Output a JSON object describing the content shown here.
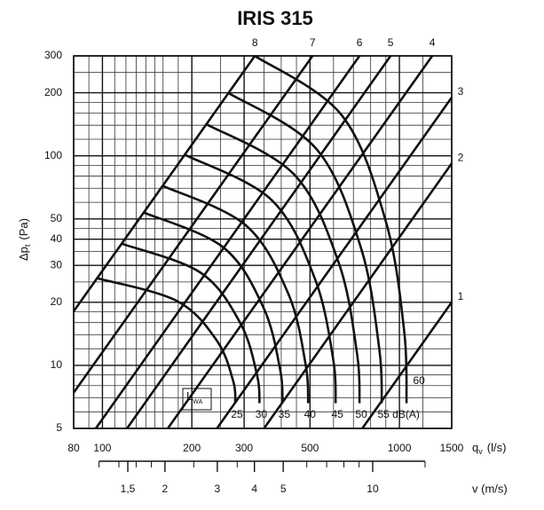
{
  "chart_data": {
    "type": "line",
    "title": "IRIS 315",
    "y_label": [
      "Δp",
      "t",
      "(Pa)"
    ],
    "x_label": [
      "q",
      "v",
      "(l/s)"
    ],
    "xscale": "log",
    "yscale": "log",
    "xlim": [
      80,
      1500
    ],
    "ylim": [
      5,
      300
    ],
    "xticks": [
      80,
      100,
      200,
      300,
      500,
      1000,
      1500
    ],
    "yticks": [
      5,
      10,
      20,
      30,
      40,
      50,
      100,
      200,
      300
    ],
    "xgrid": [
      90,
      110,
      120,
      130,
      140,
      150,
      160,
      180,
      250,
      350,
      400,
      450,
      600,
      700,
      800,
      900,
      1200
    ],
    "ygrid": [
      6,
      7,
      8,
      9,
      12,
      14,
      16,
      18,
      25,
      35,
      45,
      60,
      70,
      80,
      90,
      120,
      140,
      160,
      180,
      250
    ],
    "grid": true,
    "color": "#111111",
    "series": [
      {
        "name": "1",
        "x": [
          750,
          1500
        ],
        "values": [
          5,
          20
        ]
      },
      {
        "name": "2",
        "x": [
          350,
          1500
        ],
        "values": [
          5,
          92
        ]
      },
      {
        "name": "3",
        "x": [
          243,
          1500
        ],
        "values": [
          5,
          190
        ]
      },
      {
        "name": "4",
        "x": [
          166,
          1290
        ],
        "values": [
          5,
          300
        ]
      },
      {
        "name": "5",
        "x": [
          121,
          934
        ],
        "values": [
          5,
          300
        ]
      },
      {
        "name": "6",
        "x": [
          95,
          734
        ],
        "values": [
          5,
          300
        ]
      },
      {
        "name": "7",
        "x": [
          80,
          510
        ],
        "values": [
          7.4,
          300
        ]
      },
      {
        "name": "8",
        "x": [
          80,
          326
        ],
        "values": [
          18.1,
          300
        ]
      }
    ],
    "sound_curves": [
      {
        "name": "25",
        "x": [
          96.6,
          178,
          243,
          276,
          280
        ],
        "values": [
          26.0,
          20.3,
          13.1,
          8.35,
          6.6
        ]
      },
      {
        "name": "30",
        "x": [
          116,
          214,
          292,
          332,
          338
        ],
        "values": [
          38.1,
          27.7,
          15.8,
          8.92,
          6.6
        ]
      },
      {
        "name": "35",
        "x": [
          138,
          255,
          349,
          397,
          404
        ],
        "values": [
          53.6,
          36.6,
          18.8,
          9.47,
          6.6
        ]
      },
      {
        "name": "40",
        "x": [
          160,
          304,
          424,
          484,
          493
        ],
        "values": [
          71.8,
          46.6,
          21.7,
          9.96,
          6.6
        ]
      },
      {
        "name": "45",
        "x": [
          190,
          371,
          520,
          599,
          610
        ],
        "values": [
          101,
          61.6,
          25.8,
          10.6,
          6.6
        ]
      },
      {
        "name": "50",
        "x": [
          223,
          442,
          626,
          721,
          734
        ],
        "values": [
          142,
          81.5,
          30.6,
          11.2,
          6.6
        ]
      },
      {
        "name": "55",
        "x": [
          265,
          525,
          743,
          856,
          872
        ],
        "values": [
          200,
          108,
          36.2,
          11.9,
          6.6
        ]
      },
      {
        "name": "60",
        "x": [
          326,
          640,
          902,
          1038,
          1057
        ],
        "values": [
          300,
          156,
          48.1,
          14.5,
          6.6
        ]
      }
    ],
    "sound_unit": "dB(A)",
    "sound_symbol": [
      "L",
      "WA"
    ],
    "v_axis": {
      "label": "v (m/s)",
      "vlim": [
        0.986,
        18.44
      ],
      "ticks": [
        {
          "value": 1.5,
          "label": "1,5"
        },
        2,
        3,
        4,
        5,
        10
      ],
      "minor": [
        1.2,
        1.4,
        1.6,
        1.8,
        2.5,
        3.5,
        6,
        7,
        8,
        9,
        15
      ]
    }
  }
}
